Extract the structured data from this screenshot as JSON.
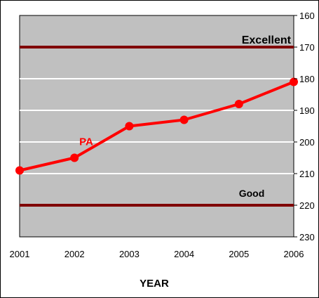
{
  "chart_data": {
    "type": "line",
    "x": [
      "2001",
      "2002",
      "2003",
      "2004",
      "2005",
      "2006"
    ],
    "series": [
      {
        "name": "PA",
        "values": [
          209,
          205,
          195,
          193,
          188,
          181
        ]
      }
    ],
    "reference_lines": [
      {
        "label": "Excellent",
        "value": 170
      },
      {
        "label": "Good",
        "value": 220
      }
    ],
    "xlabel": "YEAR",
    "ylabel": "",
    "ylim": [
      160,
      230
    ],
    "y_axis_position": "right",
    "y_reversed": true,
    "y_ticks": [
      "160",
      "170",
      "180",
      "190",
      "200",
      "210",
      "220",
      "230"
    ],
    "grid": true,
    "legend": "none",
    "colors": {
      "plot_background": "#c0c0c0",
      "gridline": "#ffffff",
      "series": "#ff0000",
      "reference_line": "#800000"
    }
  }
}
